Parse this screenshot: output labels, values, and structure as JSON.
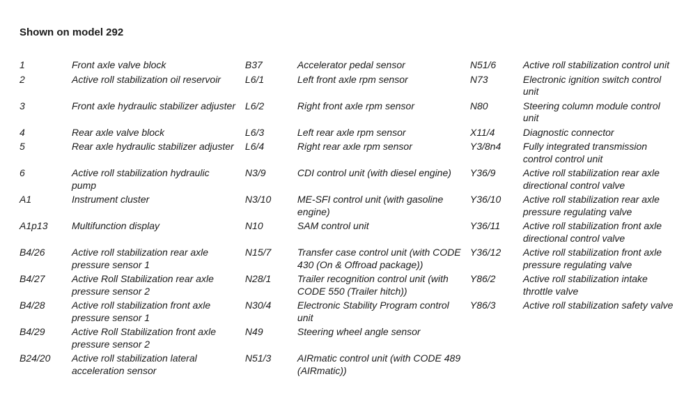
{
  "title": "Shown on model 292",
  "legend": {
    "rows": [
      {
        "cells": [
          {
            "code": "1",
            "desc": "Front axle valve block"
          },
          {
            "code": "B37",
            "desc": "Accelerator pedal sensor"
          },
          {
            "code": "N51/6",
            "desc": "Active roll stabilization control unit"
          }
        ]
      },
      {
        "cells": [
          {
            "code": "2",
            "desc": "Active roll stabilization oil reservoir"
          },
          {
            "code": "L6/1",
            "desc": "Left front axle rpm sensor"
          },
          {
            "code": "N73",
            "desc": "Electronic ignition switch control unit"
          }
        ]
      },
      {
        "cells": [
          {
            "code": "3",
            "desc": "Front axle hydraulic stabilizer adjuster"
          },
          {
            "code": "L6/2",
            "desc": "Right front axle rpm sensor"
          },
          {
            "code": "N80",
            "desc": "Steering column module control unit"
          }
        ]
      },
      {
        "cells": [
          {
            "code": "4",
            "desc": "Rear axle valve block"
          },
          {
            "code": "L6/3",
            "desc": "Left rear axle rpm sensor"
          },
          {
            "code": "X11/4",
            "desc": "Diagnostic connector"
          }
        ]
      },
      {
        "cells": [
          {
            "code": "5",
            "desc": "Rear axle hydraulic stabilizer adjuster"
          },
          {
            "code": "L6/4",
            "desc": "Right rear axle rpm sensor"
          },
          {
            "code": "Y3/8n4",
            "desc": "Fully integrated transmission control control unit"
          }
        ]
      },
      {
        "cells": [
          {
            "code": "6",
            "desc": "Active roll stabilization hydraulic pump"
          },
          {
            "code": "N3/9",
            "desc": "CDI control unit (with diesel engine)"
          },
          {
            "code": "Y36/9",
            "desc": "Active roll stabilization rear axle directional control valve"
          }
        ]
      },
      {
        "cells": [
          {
            "code": "A1",
            "desc": "Instrument cluster"
          },
          {
            "code": "N3/10",
            "desc": "ME-SFI control unit (with gasoline engine)"
          },
          {
            "code": "Y36/10",
            "desc": "Active roll stabilization rear axle pressure regulating valve"
          }
        ]
      },
      {
        "cells": [
          {
            "code": "A1p13",
            "desc": "Multifunction display"
          },
          {
            "code": "N10",
            "desc": "SAM control unit"
          },
          {
            "code": "Y36/11",
            "desc": "Active roll stabilization front axle directional control valve"
          }
        ]
      },
      {
        "cells": [
          {
            "code": "B4/26",
            "desc": "Active roll stabilization rear axle pressure sensor 1"
          },
          {
            "code": "N15/7",
            "desc": "Transfer case control unit (with CODE 430 (On & Offroad package))"
          },
          {
            "code": "Y36/12",
            "desc": "Active roll stabilization front axle pressure regulating valve"
          }
        ]
      },
      {
        "cells": [
          {
            "code": "B4/27",
            "desc": "Active Roll Stabilization rear axle pressure sensor 2"
          },
          {
            "code": "N28/1",
            "desc": "Trailer recognition control unit (with CODE 550 (Trailer hitch))"
          },
          {
            "code": "Y86/2",
            "desc": "Active roll stabilization intake throttle valve"
          }
        ]
      },
      {
        "cells": [
          {
            "code": "B4/28",
            "desc": "Active roll stabilization front axle pressure sensor 1"
          },
          {
            "code": "N30/4",
            "desc": "Electronic Stability Program control unit"
          },
          {
            "code": "Y86/3",
            "desc": "Active roll stabilization safety valve"
          }
        ]
      },
      {
        "cells": [
          {
            "code": "B4/29",
            "desc": "Active Roll Stabilization front axle pressure sensor 2"
          },
          {
            "code": "N49",
            "desc": "Steering wheel angle sensor"
          },
          {
            "code": "",
            "desc": ""
          }
        ]
      },
      {
        "cells": [
          {
            "code": "B24/20",
            "desc": "Active roll stabilization lateral acceleration sensor"
          },
          {
            "code": "N51/3",
            "desc": "AIRmatic control unit (with CODE 489 (AIRmatic))"
          },
          {
            "code": "",
            "desc": ""
          }
        ]
      }
    ]
  }
}
